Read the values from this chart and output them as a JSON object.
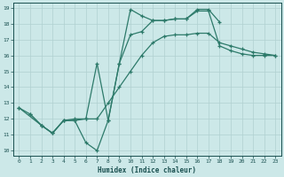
{
  "title": "",
  "xlabel": "Humidex (Indice chaleur)",
  "bg_color": "#cce8e8",
  "grid_color": "#b0d0d0",
  "line_color": "#2d7a6a",
  "xlim": [
    -0.5,
    23.5
  ],
  "ylim": [
    9.7,
    19.3
  ],
  "yticks": [
    10,
    11,
    12,
    13,
    14,
    15,
    16,
    17,
    18,
    19
  ],
  "xticks": [
    0,
    1,
    2,
    3,
    4,
    5,
    6,
    7,
    8,
    9,
    10,
    11,
    12,
    13,
    14,
    15,
    16,
    17,
    18,
    19,
    20,
    21,
    22,
    23
  ],
  "font_color": "#1a5050",
  "line1_x": [
    0,
    1,
    2,
    3,
    4,
    5,
    6,
    7,
    8,
    9,
    10,
    11,
    12,
    13,
    14,
    15,
    16,
    17,
    18
  ],
  "line1_y": [
    12.7,
    12.3,
    11.6,
    11.1,
    11.9,
    11.9,
    10.5,
    10.0,
    11.9,
    15.5,
    18.9,
    18.5,
    18.2,
    18.2,
    18.3,
    18.3,
    18.9,
    18.9,
    18.1
  ],
  "line2_x": [
    0,
    2,
    3,
    4,
    5,
    6,
    7,
    8,
    9,
    10,
    11,
    12,
    13,
    14,
    15,
    16,
    17,
    18,
    19,
    20,
    21,
    22,
    23
  ],
  "line2_y": [
    12.7,
    11.6,
    11.1,
    11.9,
    12.0,
    12.0,
    15.5,
    11.9,
    15.5,
    17.3,
    17.5,
    18.2,
    18.2,
    18.3,
    18.3,
    18.8,
    18.8,
    16.6,
    16.3,
    16.1,
    16.0,
    16.0,
    16.0
  ],
  "line3_x": [
    1,
    2,
    3,
    4,
    5,
    6,
    7,
    8,
    9,
    10,
    11,
    12,
    13,
    14,
    15,
    16,
    17,
    18,
    19,
    20,
    21,
    22,
    23
  ],
  "line3_y": [
    12.3,
    11.6,
    11.1,
    11.9,
    11.9,
    12.0,
    12.0,
    13.0,
    14.0,
    15.0,
    16.0,
    16.8,
    17.2,
    17.3,
    17.3,
    17.4,
    17.4,
    16.8,
    16.6,
    16.4,
    16.2,
    16.1,
    16.0
  ]
}
